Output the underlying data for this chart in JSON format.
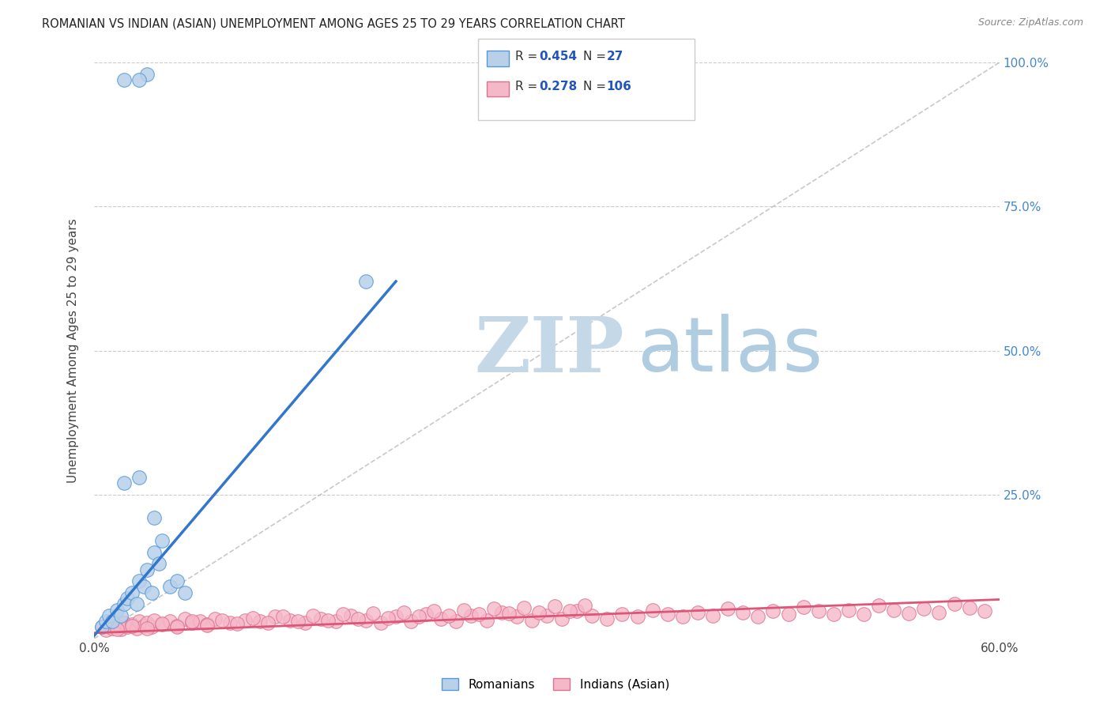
{
  "title": "ROMANIAN VS INDIAN (ASIAN) UNEMPLOYMENT AMONG AGES 25 TO 29 YEARS CORRELATION CHART",
  "source": "Source: ZipAtlas.com",
  "ylabel": "Unemployment Among Ages 25 to 29 years",
  "xlim": [
    0.0,
    0.6
  ],
  "ylim": [
    0.0,
    1.0
  ],
  "xtick_positions": [
    0.0,
    0.1,
    0.2,
    0.3,
    0.4,
    0.5,
    0.6
  ],
  "xticklabels": [
    "0.0%",
    "",
    "",
    "",
    "",
    "",
    "60.0%"
  ],
  "ytick_positions": [
    0.0,
    0.25,
    0.5,
    0.75,
    1.0
  ],
  "yticklabels_right": [
    "",
    "25.0%",
    "50.0%",
    "75.0%",
    "100.0%"
  ],
  "romanian_R": 0.454,
  "romanian_N": 27,
  "indian_R": 0.278,
  "indian_N": 106,
  "romanian_fill": "#b8d0e8",
  "indian_fill": "#f5b8c8",
  "romanian_edge": "#5599dd",
  "indian_edge": "#e07090",
  "romanian_line_color": "#3377cc",
  "indian_line_color": "#dd5577",
  "right_tick_color": "#4488cc",
  "watermark_zip_color": "#c5d8e8",
  "watermark_atlas_color": "#b0cce0",
  "grid_color": "#cccccc",
  "diag_color": "#bbbbbb",
  "romanian_scatter_x": [
    0.005,
    0.008,
    0.01,
    0.012,
    0.015,
    0.018,
    0.02,
    0.022,
    0.025,
    0.028,
    0.03,
    0.033,
    0.035,
    0.038,
    0.04,
    0.043,
    0.045,
    0.05,
    0.055,
    0.06,
    0.02,
    0.035,
    0.03,
    0.18,
    0.02,
    0.03,
    0.04
  ],
  "romanian_scatter_y": [
    0.02,
    0.03,
    0.04,
    0.03,
    0.05,
    0.04,
    0.06,
    0.07,
    0.08,
    0.06,
    0.1,
    0.09,
    0.12,
    0.08,
    0.15,
    0.13,
    0.17,
    0.09,
    0.1,
    0.08,
    0.97,
    0.98,
    0.97,
    0.62,
    0.27,
    0.28,
    0.21
  ],
  "romanian_line_x": [
    0.0,
    0.2
  ],
  "romanian_line_y": [
    0.005,
    0.62
  ],
  "indian_line_x": [
    0.0,
    0.6
  ],
  "indian_line_y": [
    0.01,
    0.068
  ],
  "diag_line_x": [
    0.0,
    0.6
  ],
  "diag_line_y": [
    0.0,
    1.0
  ],
  "indian_scatter_x": [
    0.005,
    0.008,
    0.01,
    0.012,
    0.015,
    0.018,
    0.02,
    0.022,
    0.025,
    0.028,
    0.03,
    0.033,
    0.035,
    0.038,
    0.04,
    0.045,
    0.05,
    0.055,
    0.06,
    0.065,
    0.07,
    0.075,
    0.08,
    0.09,
    0.1,
    0.11,
    0.12,
    0.13,
    0.14,
    0.15,
    0.16,
    0.17,
    0.18,
    0.19,
    0.2,
    0.21,
    0.22,
    0.23,
    0.24,
    0.25,
    0.26,
    0.27,
    0.28,
    0.29,
    0.3,
    0.31,
    0.32,
    0.33,
    0.34,
    0.35,
    0.36,
    0.37,
    0.38,
    0.39,
    0.4,
    0.41,
    0.42,
    0.43,
    0.44,
    0.45,
    0.46,
    0.47,
    0.48,
    0.49,
    0.5,
    0.51,
    0.52,
    0.53,
    0.54,
    0.55,
    0.56,
    0.57,
    0.58,
    0.59,
    0.015,
    0.025,
    0.035,
    0.045,
    0.055,
    0.065,
    0.075,
    0.085,
    0.095,
    0.105,
    0.115,
    0.125,
    0.135,
    0.145,
    0.155,
    0.165,
    0.175,
    0.185,
    0.195,
    0.205,
    0.215,
    0.225,
    0.235,
    0.245,
    0.255,
    0.265,
    0.275,
    0.285,
    0.295,
    0.305,
    0.315,
    0.325
  ],
  "indian_scatter_y": [
    0.02,
    0.015,
    0.025,
    0.018,
    0.022,
    0.016,
    0.028,
    0.02,
    0.025,
    0.018,
    0.03,
    0.022,
    0.028,
    0.02,
    0.032,
    0.025,
    0.03,
    0.022,
    0.035,
    0.028,
    0.03,
    0.025,
    0.035,
    0.028,
    0.032,
    0.03,
    0.038,
    0.032,
    0.028,
    0.035,
    0.03,
    0.04,
    0.032,
    0.028,
    0.038,
    0.03,
    0.042,
    0.035,
    0.03,
    0.04,
    0.032,
    0.045,
    0.038,
    0.032,
    0.04,
    0.035,
    0.048,
    0.04,
    0.035,
    0.042,
    0.038,
    0.05,
    0.042,
    0.038,
    0.045,
    0.04,
    0.052,
    0.045,
    0.038,
    0.048,
    0.042,
    0.055,
    0.048,
    0.042,
    0.05,
    0.042,
    0.058,
    0.05,
    0.044,
    0.052,
    0.045,
    0.06,
    0.053,
    0.048,
    0.016,
    0.022,
    0.018,
    0.026,
    0.02,
    0.03,
    0.024,
    0.032,
    0.026,
    0.036,
    0.028,
    0.038,
    0.03,
    0.04,
    0.032,
    0.042,
    0.034,
    0.044,
    0.036,
    0.046,
    0.038,
    0.048,
    0.04,
    0.05,
    0.042,
    0.052,
    0.044,
    0.054,
    0.046,
    0.056,
    0.048,
    0.058
  ]
}
